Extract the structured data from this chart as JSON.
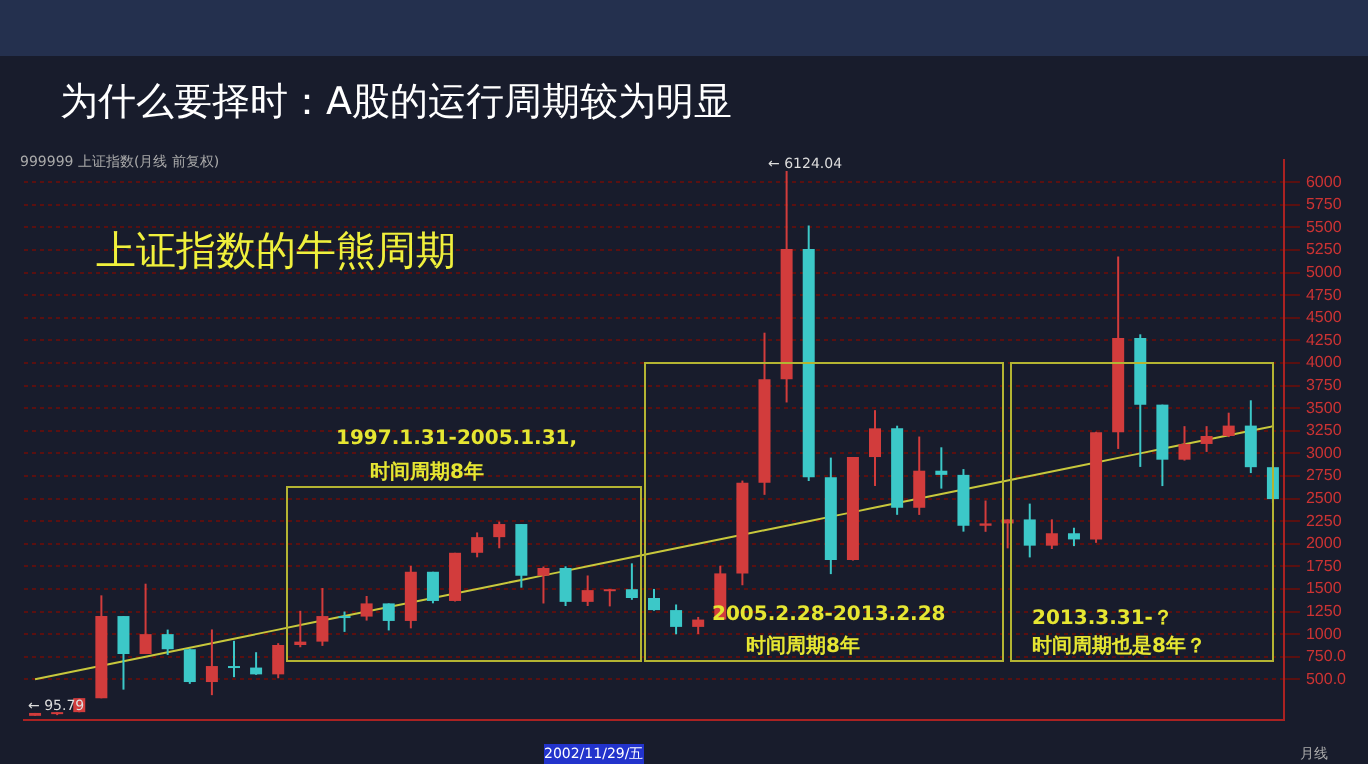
{
  "chart_data": {
    "type": "candlestick",
    "title": "为什么要择时：A股的运行周期较为明显",
    "subtitle": "上证指数的牛熊周期",
    "annotations": [
      "999999 上证指数(月线 前复权)",
      "2002/11/29/五",
      "月线",
      "1997.1.31-2005.1.31,",
      "时间周期8年",
      "2005.2.28-2013.2.28",
      "时间周期8年",
      "2013.3.31-？",
      "时间周期也是8年？",
      "← 6124.04",
      "← 95.79"
    ],
    "categories": [
      null,
      null,
      null,
      null,
      null,
      null,
      null,
      null,
      null,
      null,
      null,
      null,
      null,
      null,
      null,
      null,
      null,
      null,
      null,
      null,
      null,
      null,
      null,
      null,
      null,
      null,
      null,
      null,
      null,
      null,
      null,
      null,
      null,
      null,
      null,
      null,
      null,
      null,
      null,
      null,
      null,
      null,
      null,
      null,
      null,
      null,
      null,
      null,
      null,
      null,
      null,
      null,
      null,
      null,
      null,
      null,
      null
    ],
    "ohlc": [
      [
        96,
        128,
        95.79,
        128
      ],
      [
        128,
        137,
        104,
        137
      ],
      [
        137,
        293,
        135,
        292
      ],
      [
        292,
        1429,
        290,
        1200
      ],
      [
        1200,
        1200,
        386,
        780
      ],
      [
        780,
        1558,
        780,
        1000
      ],
      [
        1000,
        1050,
        770,
        833
      ],
      [
        833,
        840,
        450,
        470
      ],
      [
        470,
        1052,
        325,
        647
      ],
      [
        647,
        926,
        524,
        630
      ],
      [
        630,
        800,
        550,
        555
      ],
      [
        555,
        900,
        512,
        880
      ],
      [
        880,
        1258,
        855,
        917
      ],
      [
        917,
        1510,
        870,
        1200
      ],
      [
        1200,
        1250,
        1025,
        1194
      ],
      [
        1194,
        1422,
        1150,
        1340
      ],
      [
        1340,
        1340,
        1041,
        1146
      ],
      [
        1146,
        1756,
        1064,
        1690
      ],
      [
        1690,
        1690,
        1341,
        1367
      ],
      [
        1367,
        1900,
        1361,
        1900
      ],
      [
        1900,
        2125,
        1850,
        2073
      ],
      [
        2073,
        2245,
        1950,
        2218
      ],
      [
        2218,
        2218,
        1514,
        1646
      ],
      [
        1646,
        1748,
        1339,
        1732
      ],
      [
        1732,
        1750,
        1311,
        1357
      ],
      [
        1357,
        1649,
        1311,
        1487
      ],
      [
        1487,
        1500,
        1307,
        1497
      ],
      [
        1497,
        1783,
        1380,
        1400
      ],
      [
        1400,
        1500,
        1259,
        1266
      ],
      [
        1266,
        1328,
        998,
        1080
      ],
      [
        1080,
        1190,
        1000,
        1161
      ],
      [
        1161,
        1757,
        1160,
        1672
      ],
      [
        1672,
        2699,
        1541,
        2675
      ],
      [
        2675,
        4335,
        2541,
        3821
      ],
      [
        3821,
        6124.04,
        3563,
        5261
      ],
      [
        5261,
        5522,
        2693,
        2736
      ],
      [
        2736,
        2953,
        1664,
        1821
      ],
      [
        1821,
        2959,
        1814,
        2959
      ],
      [
        2959,
        3478,
        2639,
        3277
      ],
      [
        3277,
        3306,
        2320,
        2398
      ],
      [
        2398,
        3186,
        2319,
        2808
      ],
      [
        2808,
        3067,
        2610,
        2762
      ],
      [
        2762,
        2826,
        2134,
        2199
      ],
      [
        2199,
        2478,
        2132,
        2225
      ],
      [
        2225,
        2270,
        1949,
        2269
      ],
      [
        2269,
        2444,
        1849,
        1979
      ],
      [
        1979,
        2270,
        1942,
        2116
      ],
      [
        2116,
        2177,
        1974,
        2048
      ],
      [
        2048,
        3239,
        2010,
        3234
      ],
      [
        3234,
        5178,
        3049,
        4277
      ],
      [
        4277,
        4317,
        2850,
        3539
      ],
      [
        3539,
        3539,
        2638,
        2930
      ],
      [
        2930,
        3301,
        2920,
        3104
      ],
      [
        3104,
        3301,
        3016,
        3192
      ],
      [
        3192,
        3450,
        3180,
        3307
      ],
      [
        3307,
        3587,
        2782,
        2847
      ],
      [
        2847,
        2915,
        2449,
        2494
      ]
    ],
    "colors": [
      "#d23c3c",
      "#d23c3c",
      "#d23c3c",
      "#d23c3c",
      "#3cc8c8",
      "#d23c3c",
      "#3cc8c8",
      "#3cc8c8",
      "#d23c3c",
      "#3cc8c8",
      "#3cc8c8",
      "#d23c3c",
      "#d23c3c",
      "#d23c3c",
      "#3cc8c8",
      "#d23c3c",
      "#3cc8c8",
      "#d23c3c",
      "#3cc8c8",
      "#d23c3c",
      "#d23c3c",
      "#d23c3c",
      "#3cc8c8",
      "#d23c3c",
      "#3cc8c8",
      "#d23c3c",
      "#d23c3c",
      "#3cc8c8",
      "#3cc8c8",
      "#3cc8c8",
      "#d23c3c",
      "#d23c3c",
      "#d23c3c",
      "#d23c3c",
      "#d23c3c",
      "#3cc8c8",
      "#3cc8c8",
      "#d23c3c",
      "#d23c3c",
      "#3cc8c8",
      "#d23c3c",
      "#3cc8c8",
      "#3cc8c8",
      "#d23c3c",
      "#d23c3c",
      "#3cc8c8",
      "#d23c3c",
      "#3cc8c8",
      "#d23c3c",
      "#d23c3c",
      "#3cc8c8",
      "#3cc8c8",
      "#d23c3c",
      "#d23c3c",
      "#d23c3c",
      "#3cc8c8",
      "#3cc8c8"
    ],
    "series": [
      {
        "type": "line",
        "color": "#c8c83c",
        "values": [
          500,
          550,
          600,
          650,
          700,
          750,
          800,
          850,
          900,
          950,
          1000,
          1050,
          1100,
          1150,
          1200,
          1250,
          1300,
          1350,
          1400,
          1450,
          1500,
          1550,
          1600,
          1650,
          1700,
          1750,
          1800,
          1850,
          1900,
          1950,
          2000,
          2050,
          2100,
          2150,
          2200,
          2250,
          2300,
          2350,
          2400,
          2450,
          2500,
          2550,
          2600,
          2650,
          2700,
          2750,
          2800,
          2850,
          2900,
          2950,
          3000,
          3050,
          3100,
          3150,
          3200,
          3250,
          3300
        ]
      }
    ],
    "ylim": [
      50,
      6250
    ],
    "yticks": [
      {
        "value": 500,
        "label": "500.0"
      },
      {
        "value": 750,
        "label": "750.0"
      },
      1000,
      1250,
      1500,
      1750,
      2000,
      2250,
      2500,
      2750,
      3000,
      3250,
      3500,
      3750,
      4000,
      4250,
      4500,
      4750,
      5000,
      5250,
      5500,
      5750,
      6000
    ],
    "grid": "y",
    "tick_labels": "y"
  }
}
